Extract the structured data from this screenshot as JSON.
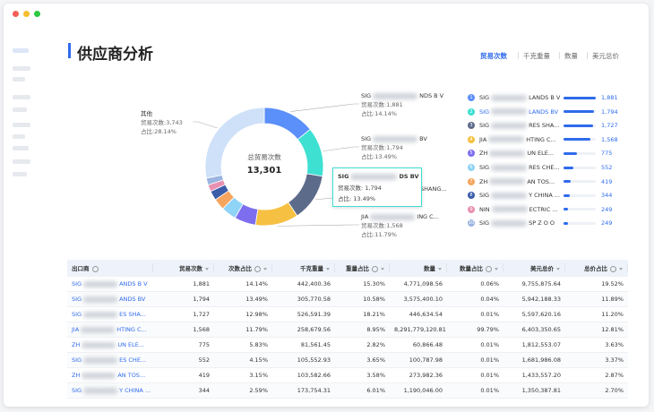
{
  "header": {
    "title": "供应商分析"
  },
  "tabs": {
    "items": [
      "贸易次数",
      "千克重量",
      "数量",
      "美元总价"
    ],
    "active": 0
  },
  "chart_data": {
    "type": "donut",
    "center_label": "总贸易次数",
    "center_value": "13,301",
    "values": [
      1881,
      1794,
      1727,
      1568,
      775,
      552,
      419,
      344,
      249,
      249
    ],
    "colors": [
      "#5b8ff9",
      "#3ee0d2",
      "#5d6b8a",
      "#f6c142",
      "#7d6ef0",
      "#8fd3f7",
      "#f6a55f",
      "#3b5ca8",
      "#e890b2",
      "#9bb4e0"
    ],
    "other": {
      "name": "其他",
      "value": 3743,
      "color": "#cfe1f8"
    },
    "callouts": [
      {
        "segment": 0,
        "prefix": "SIG",
        "suffix": "NDS B V",
        "count_label": "贸易次数:1,881",
        "share_label": "占比:14.14%"
      },
      {
        "segment": 1,
        "prefix": "SIG",
        "suffix": "BV",
        "count_label": "贸易次数:1,794",
        "share_label": "占比:13.49%"
      },
      {
        "segment": 2,
        "suffix": "SHANG..."
      },
      {
        "segment": 3,
        "prefix": "JIA",
        "suffix": "ING C...",
        "count_label": "贸易次数:1,568",
        "share_label": "占比:11.79%"
      },
      {
        "segment": "other",
        "prefix": "其他",
        "count_label": "贸易次数:3,743",
        "share_label": "占比:28.14%"
      }
    ],
    "tooltip": {
      "prefix": "SIG",
      "suffix": "DS BV",
      "count_label": "贸易次数: 1,794",
      "share_label": "占比: 13.49%"
    }
  },
  "ranking": {
    "highlight_index": 1,
    "items": [
      {
        "rank": 1,
        "prefix": "SIG",
        "suffix": "LANDS B V",
        "value": "1,881"
      },
      {
        "rank": 2,
        "prefix": "SIG",
        "suffix": "LANDS BV",
        "value": "1,794"
      },
      {
        "rank": 3,
        "prefix": "SIG",
        "suffix": "RES SHA...",
        "value": "1,727"
      },
      {
        "rank": 4,
        "prefix": "JIA",
        "suffix": "HTING C...",
        "value": "1,568"
      },
      {
        "rank": 5,
        "prefix": "ZH",
        "suffix": "UN ELE...",
        "value": "775"
      },
      {
        "rank": 6,
        "prefix": "SIG",
        "suffix": "RES CHE...",
        "value": "552"
      },
      {
        "rank": 7,
        "prefix": "ZH",
        "suffix": "AN TOS...",
        "value": "419"
      },
      {
        "rank": 8,
        "prefix": "SIG",
        "suffix": "Y CHINA ...",
        "value": "344"
      },
      {
        "rank": 9,
        "prefix": "NIN",
        "suffix": "ECTRIC ...",
        "value": "249"
      },
      {
        "rank": 10,
        "prefix": "SIG",
        "suffix": "SP Z O O",
        "value": "249"
      }
    ]
  },
  "table": {
    "columns": [
      "出口商",
      "贸易次数",
      "次数占比",
      "千克重量",
      "重量占比",
      "数量",
      "数量占比",
      "美元总价",
      "总价占比"
    ],
    "rows": [
      {
        "prefix": "SIG",
        "suffix": "ANDS B V",
        "cells": [
          "1,881",
          "14.14%",
          "442,400.36",
          "15.30%",
          "4,771,098.56",
          "0.06%",
          "9,755,875.64",
          "19.52%"
        ]
      },
      {
        "prefix": "SIG",
        "suffix": "ANDS BV",
        "cells": [
          "1,794",
          "13.49%",
          "305,770.58",
          "10.58%",
          "3,575,400.10",
          "0.04%",
          "5,942,188.33",
          "11.89%"
        ]
      },
      {
        "prefix": "SIG",
        "suffix": "ES SHA...",
        "cells": [
          "1,727",
          "12.98%",
          "526,591.39",
          "18.21%",
          "446,634.54",
          "0.01%",
          "5,597,620.16",
          "11.20%"
        ]
      },
      {
        "prefix": "JIA",
        "suffix": "HTING C...",
        "cells": [
          "1,568",
          "11.79%",
          "258,679.56",
          "8.95%",
          "8,291,779,120.81",
          "99.79%",
          "6,403,350.65",
          "12.81%"
        ]
      },
      {
        "prefix": "ZH",
        "suffix": "UN ELE...",
        "cells": [
          "775",
          "5.83%",
          "81,561.45",
          "2.82%",
          "60,866.48",
          "0.01%",
          "1,812,553.07",
          "3.63%"
        ]
      },
      {
        "prefix": "SIG",
        "suffix": "ES CHE...",
        "cells": [
          "552",
          "4.15%",
          "105,552.93",
          "3.65%",
          "100,787.98",
          "0.01%",
          "1,681,986.08",
          "3.37%"
        ]
      },
      {
        "prefix": "ZH",
        "suffix": "AN TOS...",
        "cells": [
          "419",
          "3.15%",
          "103,582.66",
          "3.58%",
          "273,982.36",
          "0.01%",
          "1,433,557.20",
          "2.87%"
        ]
      },
      {
        "prefix": "SIG",
        "suffix": "Y CHINA ...",
        "cells": [
          "344",
          "2.59%",
          "173,754.31",
          "6.01%",
          "1,190,046.00",
          "0.01%",
          "1,350,387.81",
          "2.70%"
        ]
      }
    ]
  }
}
